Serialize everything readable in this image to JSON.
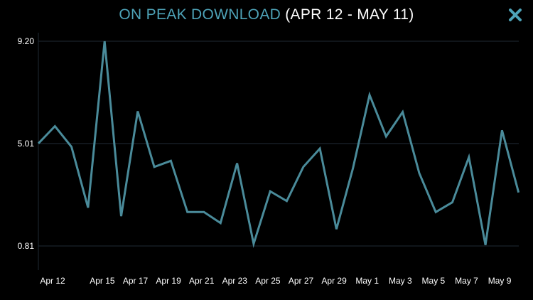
{
  "header": {
    "title_main": "ON PEAK DOWNLOAD",
    "title_range": "(APR 12 - MAY 11)",
    "close_icon": "close-x-icon"
  },
  "colors": {
    "background": "#000000",
    "accent": "#4ea3b8",
    "line": "#4a8b9a",
    "grid": "#1f2a35",
    "text": "#ffffff"
  },
  "chart_data": {
    "type": "line",
    "title": "ON PEAK DOWNLOAD (APR 12 - MAY 11)",
    "xlabel": "",
    "ylabel": "",
    "y_ticks": [
      "9.20",
      "5.01",
      "0.81"
    ],
    "y_tick_values": [
      9.2,
      5.01,
      0.81
    ],
    "x_tick_labels": [
      "Apr 12",
      "Apr 15",
      "Apr 17",
      "Apr 19",
      "Apr 21",
      "Apr 23",
      "Apr 25",
      "Apr 27",
      "Apr 29",
      "May 1",
      "May 3",
      "May 5",
      "May 7",
      "May 9"
    ],
    "x_tick_indices": [
      0,
      3,
      5,
      7,
      9,
      11,
      13,
      15,
      17,
      19,
      21,
      23,
      25,
      27
    ],
    "ylim": [
      0.81,
      9.2
    ],
    "grid": true,
    "series": [
      {
        "values": [
          5.01,
          5.72,
          4.87,
          2.38,
          9.2,
          2.03,
          6.33,
          4.05,
          4.3,
          2.2,
          2.2,
          1.75,
          4.2,
          0.9,
          3.05,
          2.65,
          4.05,
          4.8,
          1.5,
          4.0,
          7.0,
          5.3,
          6.3,
          3.8,
          2.2,
          2.6,
          4.45,
          0.85,
          5.55,
          3.0
        ]
      }
    ]
  }
}
